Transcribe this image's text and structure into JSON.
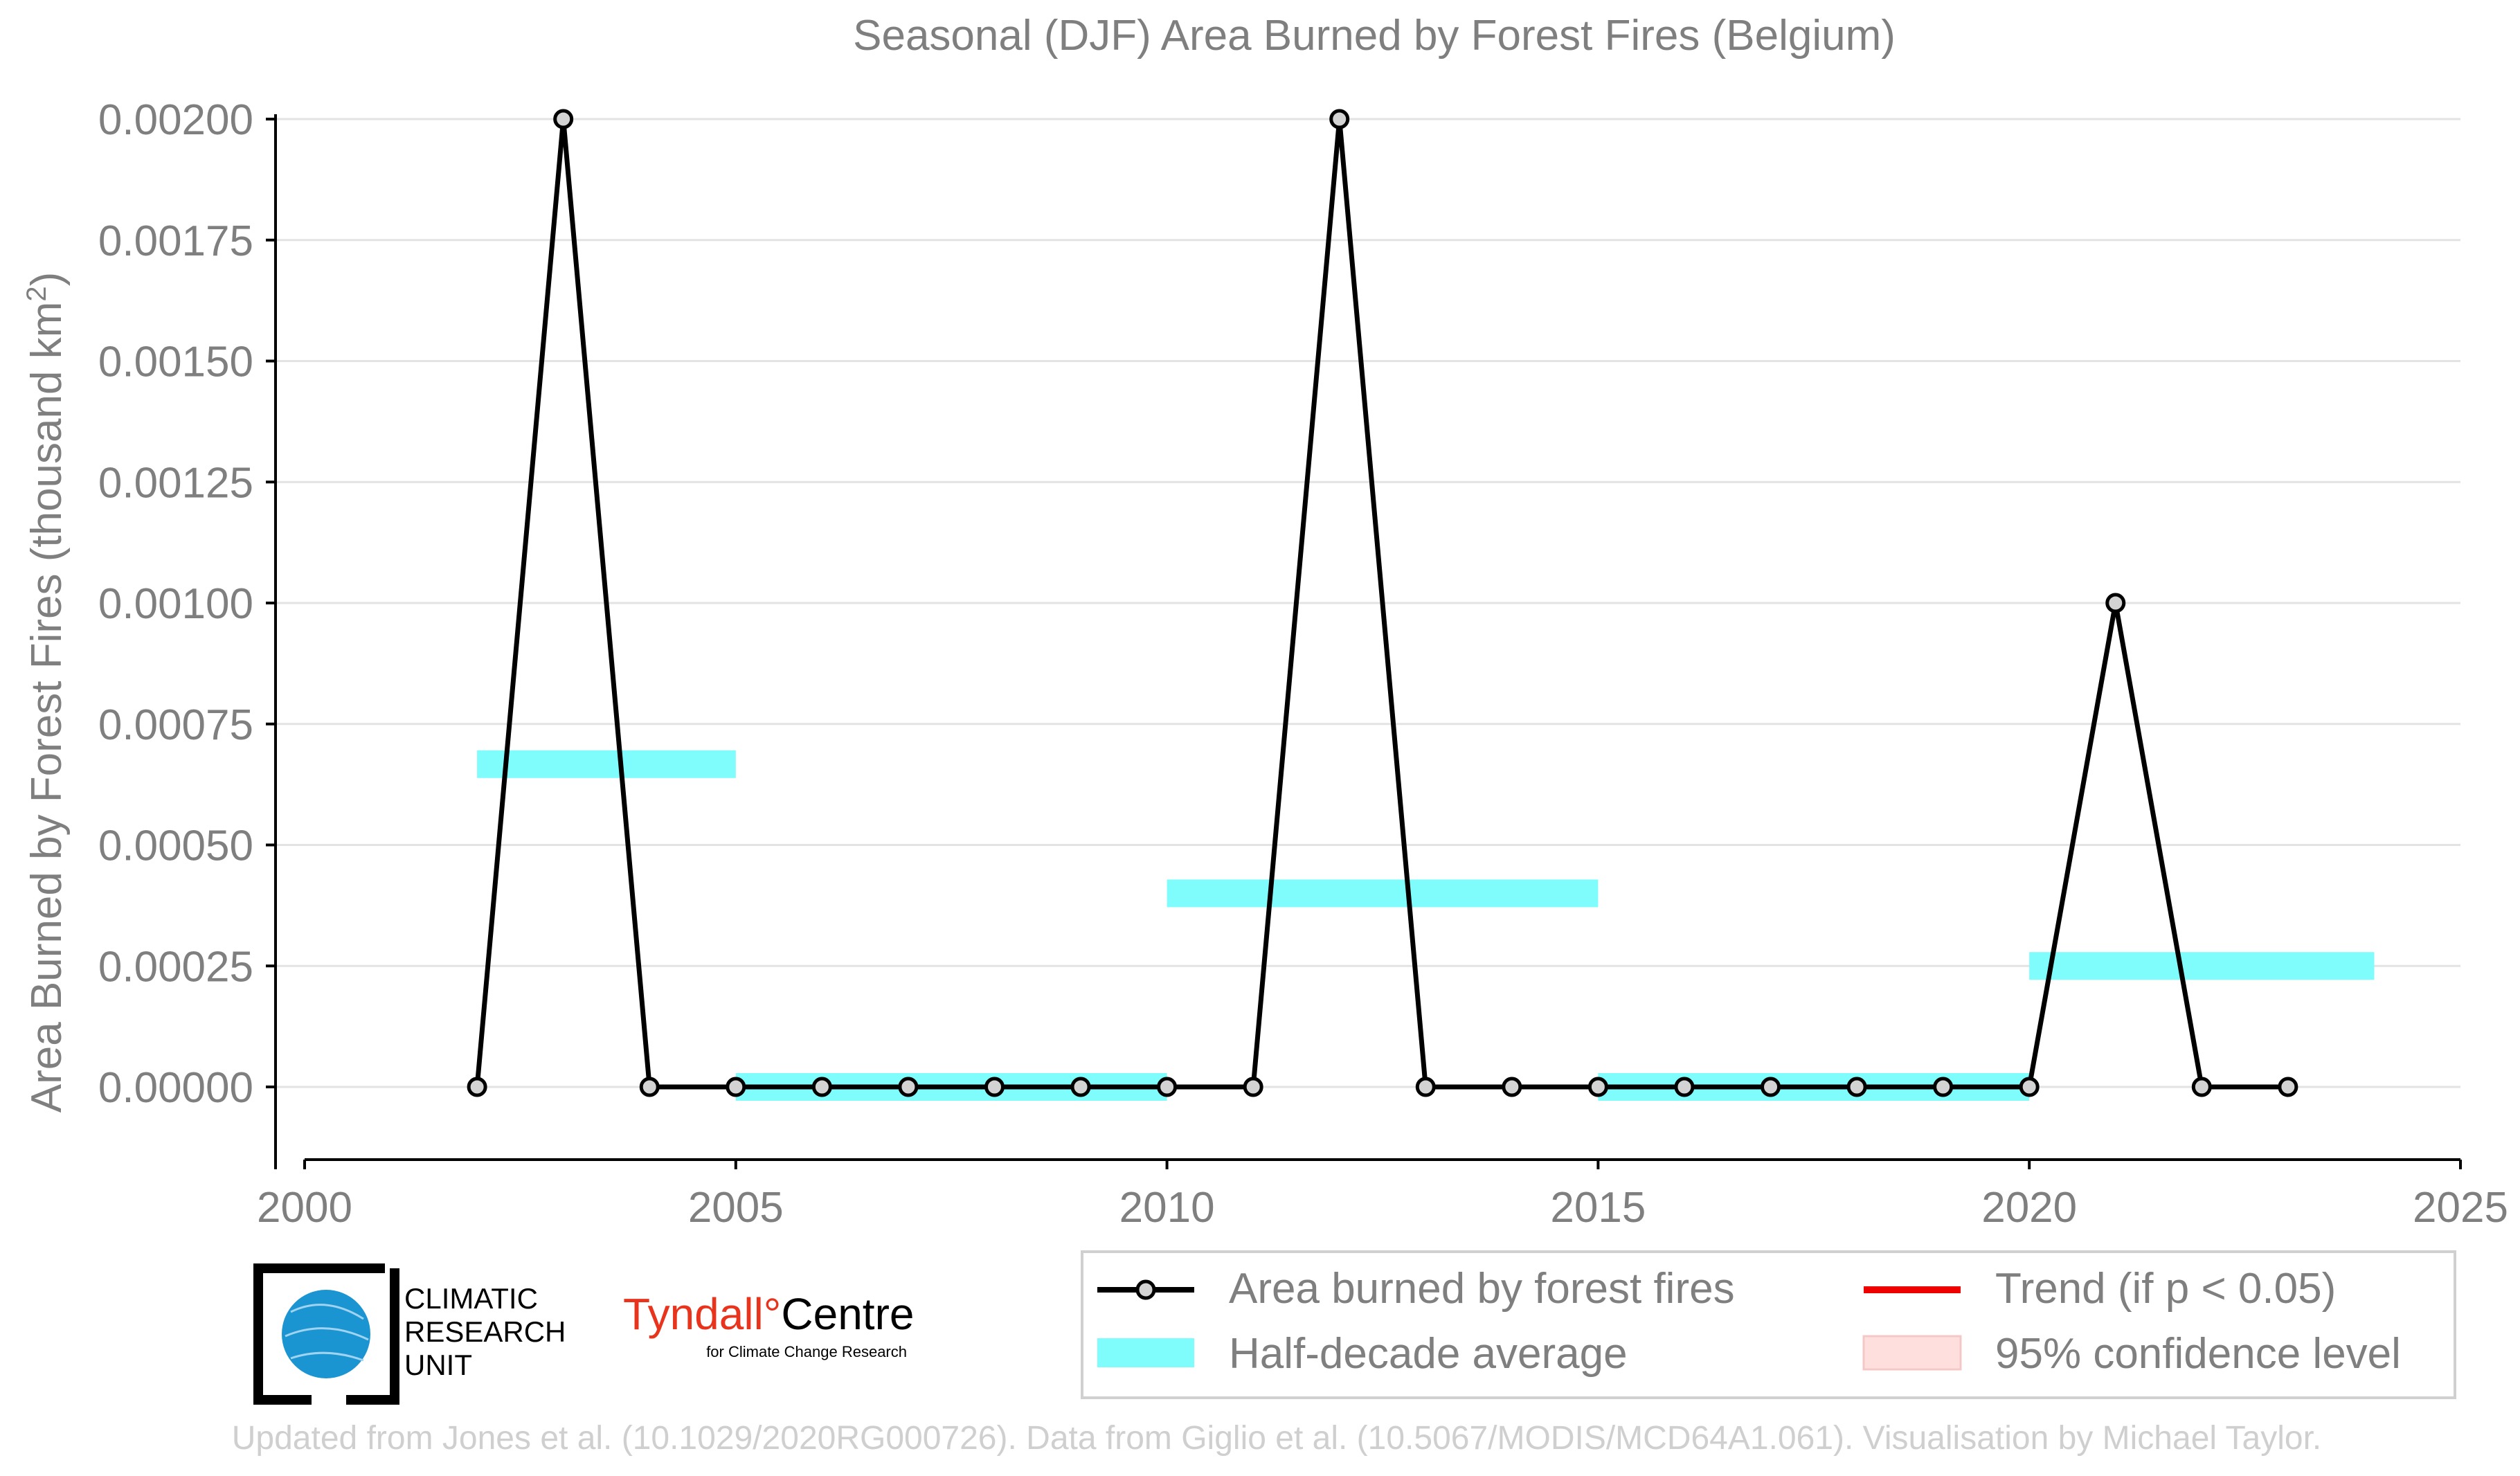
{
  "colors": {
    "text": "#7f7f7f",
    "grid": "#e3e3e3",
    "axis": "#000000",
    "series": "#000000",
    "marker_fill": "#d3d3d3",
    "half_decade": "#7ffcfc",
    "trend": "#ee0000",
    "confidence": "#ffdede",
    "footer": "#cfcfcf",
    "cru_blue": "#1a95d2",
    "tyndall_red": "#e8341c"
  },
  "chart_data": {
    "type": "line",
    "title": "Seasonal (DJF) Area Burned by Forest Fires (Belgium)",
    "xlabel": "",
    "ylabel": "Area Burned by Forest Fires (thousand km",
    "ylabel_sup": "2",
    "ylabel_end": ")",
    "xlim": [
      2000,
      2025
    ],
    "ylim": [
      -0.00017,
      0.00201
    ],
    "x_ticks": [
      2000,
      2005,
      2010,
      2015,
      2020,
      2025
    ],
    "x_tick_labels": [
      "2000",
      "2005",
      "2010",
      "2015",
      "2020",
      "2025"
    ],
    "y_ticks": [
      0,
      0.00025,
      0.0005,
      0.00075,
      0.001,
      0.00125,
      0.0015,
      0.00175,
      0.002
    ],
    "y_tick_labels": [
      "0.00000",
      "0.00025",
      "0.00050",
      "0.00075",
      "0.00100",
      "0.00125",
      "0.00150",
      "0.00175",
      "0.00200"
    ],
    "grid": true,
    "series": [
      {
        "name": "Area burned by forest fires",
        "x": [
          2002,
          2003,
          2004,
          2005,
          2006,
          2007,
          2008,
          2009,
          2010,
          2011,
          2012,
          2013,
          2014,
          2015,
          2016,
          2017,
          2018,
          2019,
          2020,
          2021,
          2022,
          2023
        ],
        "values": [
          0,
          0.002,
          0,
          0,
          0,
          0,
          0,
          0,
          0,
          0,
          0.002,
          0,
          0,
          0,
          0,
          0,
          0,
          0,
          0,
          0.001,
          0,
          0
        ]
      }
    ],
    "half_decade_average": {
      "name": "Half-decade average",
      "bands": [
        {
          "x_start": 2002,
          "x_end": 2005,
          "value": 0.000667
        },
        {
          "x_start": 2005,
          "x_end": 2010,
          "value": 0.0
        },
        {
          "x_start": 2010,
          "x_end": 2015,
          "value": 0.0004
        },
        {
          "x_start": 2015,
          "x_end": 2020,
          "value": 0.0
        },
        {
          "x_start": 2020,
          "x_end": 2024,
          "value": 0.00025
        }
      ]
    },
    "legend_position": "bottom-right",
    "legend": {
      "series": "Area burned by forest fires",
      "half_decade": "Half-decade average",
      "trend": "Trend (if p < 0.05)",
      "confidence": "95% confidence level"
    }
  },
  "logos": {
    "cru": {
      "line1": "CLIMATIC",
      "line2": "RESEARCH",
      "line3": "UNIT"
    },
    "tyndall": {
      "name_red": "Tyndall",
      "degree": "°",
      "name_black": "Centre",
      "tagline": "for Climate Change Research"
    }
  },
  "footer": "Updated from Jones et al. (10.1029/2020RG000726). Data from Giglio et al. (10.5067/MODIS/MCD64A1.061). Visualisation by Michael Taylor."
}
